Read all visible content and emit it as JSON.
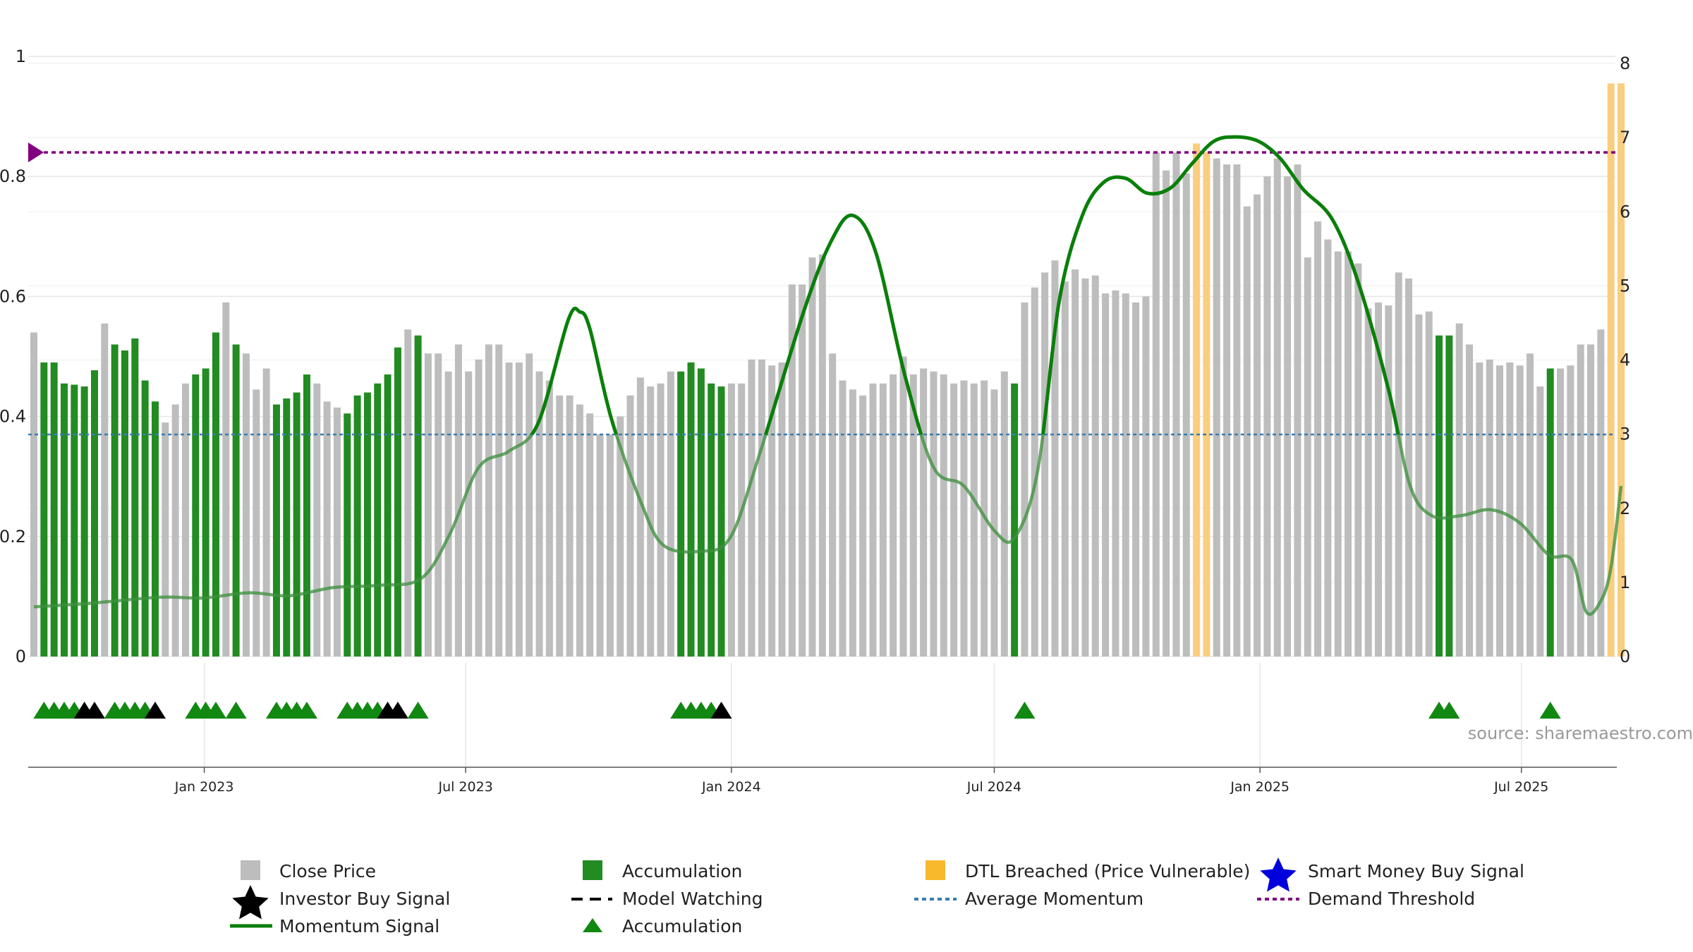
{
  "chart_data": {
    "type": "bar",
    "title": "",
    "source": "source: sharemaestro.com",
    "x_axis": {
      "range": [
        "2022-09-05",
        "2025-09-08"
      ],
      "ticks": [
        {
          "date": "2023-01-01",
          "label": "Jan 2023"
        },
        {
          "date": "2023-07-01",
          "label": "Jul 2023"
        },
        {
          "date": "2024-01-01",
          "label": "Jan 2024"
        },
        {
          "date": "2024-07-01",
          "label": "Jul 2024"
        },
        {
          "date": "2025-01-01",
          "label": "Jan 2025"
        },
        {
          "date": "2025-07-01",
          "label": "Jul 2025"
        }
      ]
    },
    "left_axis": {
      "range": [
        0,
        1
      ],
      "ticks": [
        {
          "value": 0,
          "label": "0"
        },
        {
          "value": 0.2,
          "label": "0.2"
        },
        {
          "value": 0.4,
          "label": "0.4"
        },
        {
          "value": 0.6,
          "label": "0.6"
        },
        {
          "value": 0.8,
          "label": "0.8"
        },
        {
          "value": 1,
          "label": "1"
        }
      ]
    },
    "right_axis": {
      "range": [
        0,
        8
      ],
      "ticks": [
        {
          "value": 0,
          "label": "0"
        },
        {
          "value": 1,
          "label": "1"
        },
        {
          "value": 2,
          "label": "2"
        },
        {
          "value": 3,
          "label": "3"
        },
        {
          "value": 4,
          "label": "4"
        },
        {
          "value": 5,
          "label": "5"
        },
        {
          "value": 6,
          "label": "6"
        },
        {
          "value": 7,
          "label": "7"
        },
        {
          "value": 8,
          "label": "8"
        }
      ]
    },
    "grid": true,
    "average_momentum": 0.37,
    "demand_threshold": 0.84,
    "close_price": [
      [
        "2022-09-05",
        0.54,
        "n"
      ],
      [
        "2022-09-12",
        0.49,
        "a"
      ],
      [
        "2022-09-19",
        0.49,
        "a"
      ],
      [
        "2022-09-26",
        0.455,
        "a"
      ],
      [
        "2022-10-03",
        0.453,
        "a"
      ],
      [
        "2022-10-10",
        0.45,
        "a"
      ],
      [
        "2022-10-17",
        0.477,
        "a"
      ],
      [
        "2022-10-24",
        0.555,
        "n"
      ],
      [
        "2022-10-31",
        0.52,
        "a"
      ],
      [
        "2022-11-07",
        0.51,
        "a"
      ],
      [
        "2022-11-14",
        0.53,
        "a"
      ],
      [
        "2022-11-21",
        0.46,
        "a"
      ],
      [
        "2022-11-28",
        0.425,
        "a"
      ],
      [
        "2022-12-05",
        0.39,
        "n"
      ],
      [
        "2022-12-12",
        0.42,
        "n"
      ],
      [
        "2022-12-19",
        0.455,
        "n"
      ],
      [
        "2022-12-26",
        0.47,
        "a"
      ],
      [
        "2023-01-02",
        0.48,
        "a"
      ],
      [
        "2023-01-09",
        0.54,
        "a"
      ],
      [
        "2023-01-16",
        0.59,
        "n"
      ],
      [
        "2023-01-23",
        0.52,
        "a"
      ],
      [
        "2023-01-30",
        0.505,
        "n"
      ],
      [
        "2023-02-06",
        0.445,
        "n"
      ],
      [
        "2023-02-13",
        0.48,
        "n"
      ],
      [
        "2023-02-20",
        0.42,
        "a"
      ],
      [
        "2023-02-27",
        0.43,
        "a"
      ],
      [
        "2023-03-06",
        0.44,
        "a"
      ],
      [
        "2023-03-13",
        0.47,
        "a"
      ],
      [
        "2023-03-20",
        0.455,
        "n"
      ],
      [
        "2023-03-27",
        0.425,
        "n"
      ],
      [
        "2023-04-03",
        0.415,
        "n"
      ],
      [
        "2023-04-10",
        0.405,
        "a"
      ],
      [
        "2023-04-17",
        0.435,
        "a"
      ],
      [
        "2023-04-24",
        0.44,
        "a"
      ],
      [
        "2023-05-01",
        0.455,
        "a"
      ],
      [
        "2023-05-08",
        0.47,
        "a"
      ],
      [
        "2023-05-15",
        0.515,
        "a"
      ],
      [
        "2023-05-22",
        0.545,
        "n"
      ],
      [
        "2023-05-29",
        0.535,
        "a"
      ],
      [
        "2023-06-05",
        0.505,
        "n"
      ],
      [
        "2023-06-12",
        0.505,
        "n"
      ],
      [
        "2023-06-19",
        0.475,
        "n"
      ],
      [
        "2023-06-26",
        0.52,
        "n"
      ],
      [
        "2023-07-03",
        0.475,
        "n"
      ],
      [
        "2023-07-10",
        0.495,
        "n"
      ],
      [
        "2023-07-17",
        0.52,
        "n"
      ],
      [
        "2023-07-24",
        0.52,
        "n"
      ],
      [
        "2023-07-31",
        0.49,
        "n"
      ],
      [
        "2023-08-07",
        0.49,
        "n"
      ],
      [
        "2023-08-14",
        0.505,
        "n"
      ],
      [
        "2023-08-21",
        0.475,
        "n"
      ],
      [
        "2023-08-28",
        0.46,
        "n"
      ],
      [
        "2023-09-04",
        0.435,
        "n"
      ],
      [
        "2023-09-11",
        0.435,
        "n"
      ],
      [
        "2023-09-18",
        0.42,
        "n"
      ],
      [
        "2023-09-25",
        0.405,
        "n"
      ],
      [
        "2023-10-02",
        0.37,
        "n"
      ],
      [
        "2023-10-09",
        0.37,
        "n"
      ],
      [
        "2023-10-16",
        0.4,
        "n"
      ],
      [
        "2023-10-23",
        0.435,
        "n"
      ],
      [
        "2023-10-30",
        0.465,
        "n"
      ],
      [
        "2023-11-06",
        0.45,
        "n"
      ],
      [
        "2023-11-13",
        0.455,
        "n"
      ],
      [
        "2023-11-20",
        0.475,
        "n"
      ],
      [
        "2023-11-27",
        0.475,
        "a"
      ],
      [
        "2023-12-04",
        0.49,
        "a"
      ],
      [
        "2023-12-11",
        0.48,
        "a"
      ],
      [
        "2023-12-18",
        0.455,
        "a"
      ],
      [
        "2023-12-25",
        0.45,
        "a"
      ],
      [
        "2024-01-01",
        0.455,
        "n"
      ],
      [
        "2024-01-08",
        0.455,
        "n"
      ],
      [
        "2024-01-15",
        0.495,
        "n"
      ],
      [
        "2024-01-22",
        0.495,
        "n"
      ],
      [
        "2024-01-29",
        0.485,
        "n"
      ],
      [
        "2024-02-05",
        0.49,
        "n"
      ],
      [
        "2024-02-12",
        0.62,
        "n"
      ],
      [
        "2024-02-19",
        0.62,
        "n"
      ],
      [
        "2024-02-26",
        0.665,
        "n"
      ],
      [
        "2024-03-04",
        0.67,
        "n"
      ],
      [
        "2024-03-11",
        0.505,
        "n"
      ],
      [
        "2024-03-18",
        0.46,
        "n"
      ],
      [
        "2024-03-25",
        0.445,
        "n"
      ],
      [
        "2024-04-01",
        0.435,
        "n"
      ],
      [
        "2024-04-08",
        0.455,
        "n"
      ],
      [
        "2024-04-15",
        0.455,
        "n"
      ],
      [
        "2024-04-22",
        0.47,
        "n"
      ],
      [
        "2024-04-29",
        0.5,
        "n"
      ],
      [
        "2024-05-06",
        0.47,
        "n"
      ],
      [
        "2024-05-13",
        0.48,
        "n"
      ],
      [
        "2024-05-20",
        0.475,
        "n"
      ],
      [
        "2024-05-27",
        0.47,
        "n"
      ],
      [
        "2024-06-03",
        0.455,
        "n"
      ],
      [
        "2024-06-10",
        0.46,
        "n"
      ],
      [
        "2024-06-17",
        0.455,
        "n"
      ],
      [
        "2024-06-24",
        0.46,
        "n"
      ],
      [
        "2024-07-01",
        0.445,
        "n"
      ],
      [
        "2024-07-08",
        0.475,
        "n"
      ],
      [
        "2024-07-15",
        0.455,
        "a"
      ],
      [
        "2024-07-22",
        0.59,
        "n"
      ],
      [
        "2024-07-29",
        0.615,
        "n"
      ],
      [
        "2024-08-05",
        0.64,
        "n"
      ],
      [
        "2024-08-12",
        0.66,
        "n"
      ],
      [
        "2024-08-19",
        0.625,
        "n"
      ],
      [
        "2024-08-26",
        0.645,
        "n"
      ],
      [
        "2024-09-02",
        0.63,
        "n"
      ],
      [
        "2024-09-09",
        0.635,
        "n"
      ],
      [
        "2024-09-16",
        0.605,
        "n"
      ],
      [
        "2024-09-23",
        0.61,
        "n"
      ],
      [
        "2024-09-30",
        0.605,
        "n"
      ],
      [
        "2024-10-07",
        0.59,
        "n"
      ],
      [
        "2024-10-14",
        0.6,
        "n"
      ],
      [
        "2024-10-21",
        0.84,
        "n"
      ],
      [
        "2024-10-28",
        0.81,
        "n"
      ],
      [
        "2024-11-04",
        0.84,
        "n"
      ],
      [
        "2024-11-11",
        0.805,
        "n"
      ],
      [
        "2024-11-18",
        0.855,
        "d"
      ],
      [
        "2024-11-25",
        0.84,
        "d"
      ],
      [
        "2024-12-02",
        0.83,
        "n"
      ],
      [
        "2024-12-09",
        0.82,
        "n"
      ],
      [
        "2024-12-16",
        0.82,
        "n"
      ],
      [
        "2024-12-23",
        0.75,
        "n"
      ],
      [
        "2024-12-30",
        0.77,
        "n"
      ],
      [
        "2025-01-06",
        0.8,
        "n"
      ],
      [
        "2025-01-13",
        0.83,
        "n"
      ],
      [
        "2025-01-20",
        0.8,
        "n"
      ],
      [
        "2025-01-27",
        0.82,
        "n"
      ],
      [
        "2025-02-03",
        0.665,
        "n"
      ],
      [
        "2025-02-10",
        0.725,
        "n"
      ],
      [
        "2025-02-17",
        0.695,
        "n"
      ],
      [
        "2025-02-24",
        0.675,
        "n"
      ],
      [
        "2025-03-03",
        0.675,
        "n"
      ],
      [
        "2025-03-10",
        0.655,
        "n"
      ],
      [
        "2025-03-17",
        0.58,
        "n"
      ],
      [
        "2025-03-24",
        0.59,
        "n"
      ],
      [
        "2025-03-31",
        0.585,
        "n"
      ],
      [
        "2025-04-07",
        0.64,
        "n"
      ],
      [
        "2025-04-14",
        0.63,
        "n"
      ],
      [
        "2025-04-21",
        0.57,
        "n"
      ],
      [
        "2025-04-28",
        0.575,
        "n"
      ],
      [
        "2025-05-05",
        0.535,
        "a"
      ],
      [
        "2025-05-12",
        0.535,
        "a"
      ],
      [
        "2025-05-19",
        0.555,
        "n"
      ],
      [
        "2025-05-26",
        0.52,
        "n"
      ],
      [
        "2025-06-02",
        0.49,
        "n"
      ],
      [
        "2025-06-09",
        0.495,
        "n"
      ],
      [
        "2025-06-16",
        0.485,
        "n"
      ],
      [
        "2025-06-23",
        0.49,
        "n"
      ],
      [
        "2025-06-30",
        0.485,
        "n"
      ],
      [
        "2025-07-07",
        0.505,
        "n"
      ],
      [
        "2025-07-14",
        0.45,
        "n"
      ],
      [
        "2025-07-21",
        0.48,
        "a"
      ],
      [
        "2025-07-28",
        0.48,
        "n"
      ],
      [
        "2025-08-04",
        0.485,
        "n"
      ],
      [
        "2025-08-11",
        0.52,
        "n"
      ],
      [
        "2025-08-18",
        0.52,
        "n"
      ],
      [
        "2025-08-25",
        0.545,
        "n"
      ],
      [
        "2025-09-01",
        0.955,
        "d"
      ],
      [
        "2025-09-08",
        0.955,
        "d"
      ]
    ],
    "momentum_signal": [
      [
        "2022-09-05",
        0.67
      ],
      [
        "2022-10-15",
        0.72
      ],
      [
        "2022-12-01",
        0.8
      ],
      [
        "2022-12-31",
        0.79
      ],
      [
        "2023-02-01",
        0.86
      ],
      [
        "2023-03-01",
        0.82
      ],
      [
        "2023-03-31",
        0.93
      ],
      [
        "2023-05-01",
        0.96
      ],
      [
        "2023-05-31",
        1.05
      ],
      [
        "2023-06-20",
        1.65
      ],
      [
        "2023-07-10",
        2.55
      ],
      [
        "2023-07-31",
        2.77
      ],
      [
        "2023-08-20",
        3.14
      ],
      [
        "2023-09-10",
        4.54
      ],
      [
        "2023-09-18",
        4.65
      ],
      [
        "2023-09-25",
        4.42
      ],
      [
        "2023-10-10",
        3.2
      ],
      [
        "2023-10-31",
        2.05
      ],
      [
        "2023-11-15",
        1.5
      ],
      [
        "2023-12-10",
        1.42
      ],
      [
        "2023-12-31",
        1.6
      ],
      [
        "2024-01-20",
        2.7
      ],
      [
        "2024-02-20",
        4.65
      ],
      [
        "2024-03-10",
        5.6
      ],
      [
        "2024-03-25",
        5.95
      ],
      [
        "2024-04-10",
        5.45
      ],
      [
        "2024-04-30",
        3.8
      ],
      [
        "2024-05-20",
        2.55
      ],
      [
        "2024-06-10",
        2.3
      ],
      [
        "2024-07-01",
        1.7
      ],
      [
        "2024-07-15",
        1.6
      ],
      [
        "2024-07-31",
        2.5
      ],
      [
        "2024-08-15",
        4.8
      ],
      [
        "2024-08-31",
        5.95
      ],
      [
        "2024-09-15",
        6.4
      ],
      [
        "2024-09-30",
        6.45
      ],
      [
        "2024-10-15",
        6.25
      ],
      [
        "2024-10-31",
        6.32
      ],
      [
        "2024-11-15",
        6.65
      ],
      [
        "2024-11-30",
        6.95
      ],
      [
        "2024-12-15",
        7.01
      ],
      [
        "2024-12-31",
        6.95
      ],
      [
        "2025-01-15",
        6.72
      ],
      [
        "2025-01-31",
        6.3
      ],
      [
        "2025-02-20",
        5.9
      ],
      [
        "2025-03-10",
        5.05
      ],
      [
        "2025-03-31",
        3.6
      ],
      [
        "2025-04-15",
        2.3
      ],
      [
        "2025-04-30",
        1.9
      ],
      [
        "2025-05-20",
        1.9
      ],
      [
        "2025-06-10",
        1.98
      ],
      [
        "2025-06-30",
        1.8
      ],
      [
        "2025-07-20",
        1.37
      ],
      [
        "2025-08-05",
        1.3
      ],
      [
        "2025-08-15",
        0.6
      ],
      [
        "2025-08-25",
        0.75
      ],
      [
        "2025-09-01",
        1.2
      ],
      [
        "2025-09-08",
        2.3
      ]
    ],
    "signal_markers": [
      [
        "2022-09-12",
        "a"
      ],
      [
        "2022-09-19",
        "a"
      ],
      [
        "2022-09-26",
        "a"
      ],
      [
        "2022-10-03",
        "a"
      ],
      [
        "2022-10-10",
        "i"
      ],
      [
        "2022-10-17",
        "i"
      ],
      [
        "2022-10-31",
        "a"
      ],
      [
        "2022-11-07",
        "a"
      ],
      [
        "2022-11-14",
        "a"
      ],
      [
        "2022-11-21",
        "a"
      ],
      [
        "2022-11-28",
        "i"
      ],
      [
        "2022-12-26",
        "a"
      ],
      [
        "2023-01-02",
        "a"
      ],
      [
        "2023-01-09",
        "a"
      ],
      [
        "2023-01-23",
        "a"
      ],
      [
        "2023-02-20",
        "a"
      ],
      [
        "2023-02-27",
        "a"
      ],
      [
        "2023-03-06",
        "a"
      ],
      [
        "2023-03-13",
        "a"
      ],
      [
        "2023-04-10",
        "a"
      ],
      [
        "2023-04-17",
        "a"
      ],
      [
        "2023-04-24",
        "a"
      ],
      [
        "2023-05-01",
        "a"
      ],
      [
        "2023-05-08",
        "i"
      ],
      [
        "2023-05-15",
        "i"
      ],
      [
        "2023-05-29",
        "a"
      ],
      [
        "2023-11-27",
        "a"
      ],
      [
        "2023-12-04",
        "a"
      ],
      [
        "2023-12-11",
        "a"
      ],
      [
        "2023-12-18",
        "a"
      ],
      [
        "2023-12-25",
        "i"
      ],
      [
        "2024-07-22",
        "a"
      ],
      [
        "2025-05-05",
        "a"
      ],
      [
        "2025-05-12",
        "a"
      ],
      [
        "2025-07-21",
        "a"
      ]
    ],
    "legend": [
      {
        "key": "close_price",
        "label": "Close Price",
        "color": "#bdbdbd"
      },
      {
        "key": "accumulation_bar",
        "label": "Accumulation",
        "color": "#228b22"
      },
      {
        "key": "dtl_breached",
        "label": "DTL Breached (Price Vulnerable)",
        "color": "#f9b92d"
      },
      {
        "key": "smart_money",
        "label": "Smart Money Buy Signal",
        "color": "#0000dd"
      },
      {
        "key": "investor_buy",
        "label": "Investor Buy Signal",
        "color": "#000000"
      },
      {
        "key": "model_watching",
        "label": "Model Watching",
        "color": "#000000"
      },
      {
        "key": "average_momentum",
        "label": "Average Momentum",
        "color": "#3a7dae"
      },
      {
        "key": "demand_threshold",
        "label": "Demand Threshold",
        "color": "#800080"
      },
      {
        "key": "momentum_signal",
        "label": "Momentum Signal",
        "color": "#0a7f0a"
      },
      {
        "key": "accumulation_marker",
        "label": "Accumulation",
        "color": "#118811"
      }
    ]
  }
}
